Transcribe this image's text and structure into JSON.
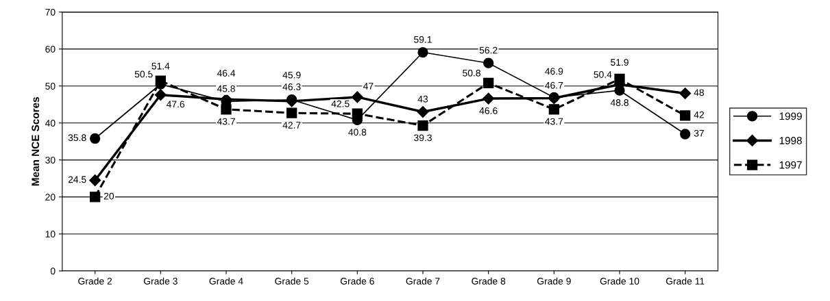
{
  "chart_data": {
    "type": "line",
    "ylabel": "Mean NCE Scores",
    "categories": [
      "Grade 2",
      "Grade 3",
      "Grade 4",
      "Grade 5",
      "Grade 6",
      "Grade 7",
      "Grade 8",
      "Grade 9",
      "Grade 10",
      "Grade 11"
    ],
    "series": [
      {
        "name": "1999",
        "color": "#000000",
        "marker": "circle",
        "line_style": "solid",
        "values": [
          35.8,
          50.5,
          45.8,
          46.3,
          40.8,
          59.1,
          56.2,
          46.9,
          48.8,
          37
        ]
      },
      {
        "name": "1998",
        "color": "#000000",
        "marker": "diamond",
        "line_style": "solid",
        "values": [
          24.5,
          47.6,
          46.4,
          45.9,
          47,
          43,
          46.6,
          46.7,
          50.4,
          48
        ]
      },
      {
        "name": "1997",
        "color": "#000000",
        "marker": "square",
        "line_style": "dashed",
        "values": [
          20,
          51.4,
          43.7,
          42.7,
          42.5,
          39.3,
          50.8,
          43.7,
          51.9,
          42
        ]
      }
    ],
    "ylim": [
      0,
      70
    ],
    "yticks": [
      0,
      10,
      20,
      30,
      40,
      50,
      60,
      70
    ],
    "grid": "y",
    "legend": "right",
    "data_labels": true
  }
}
